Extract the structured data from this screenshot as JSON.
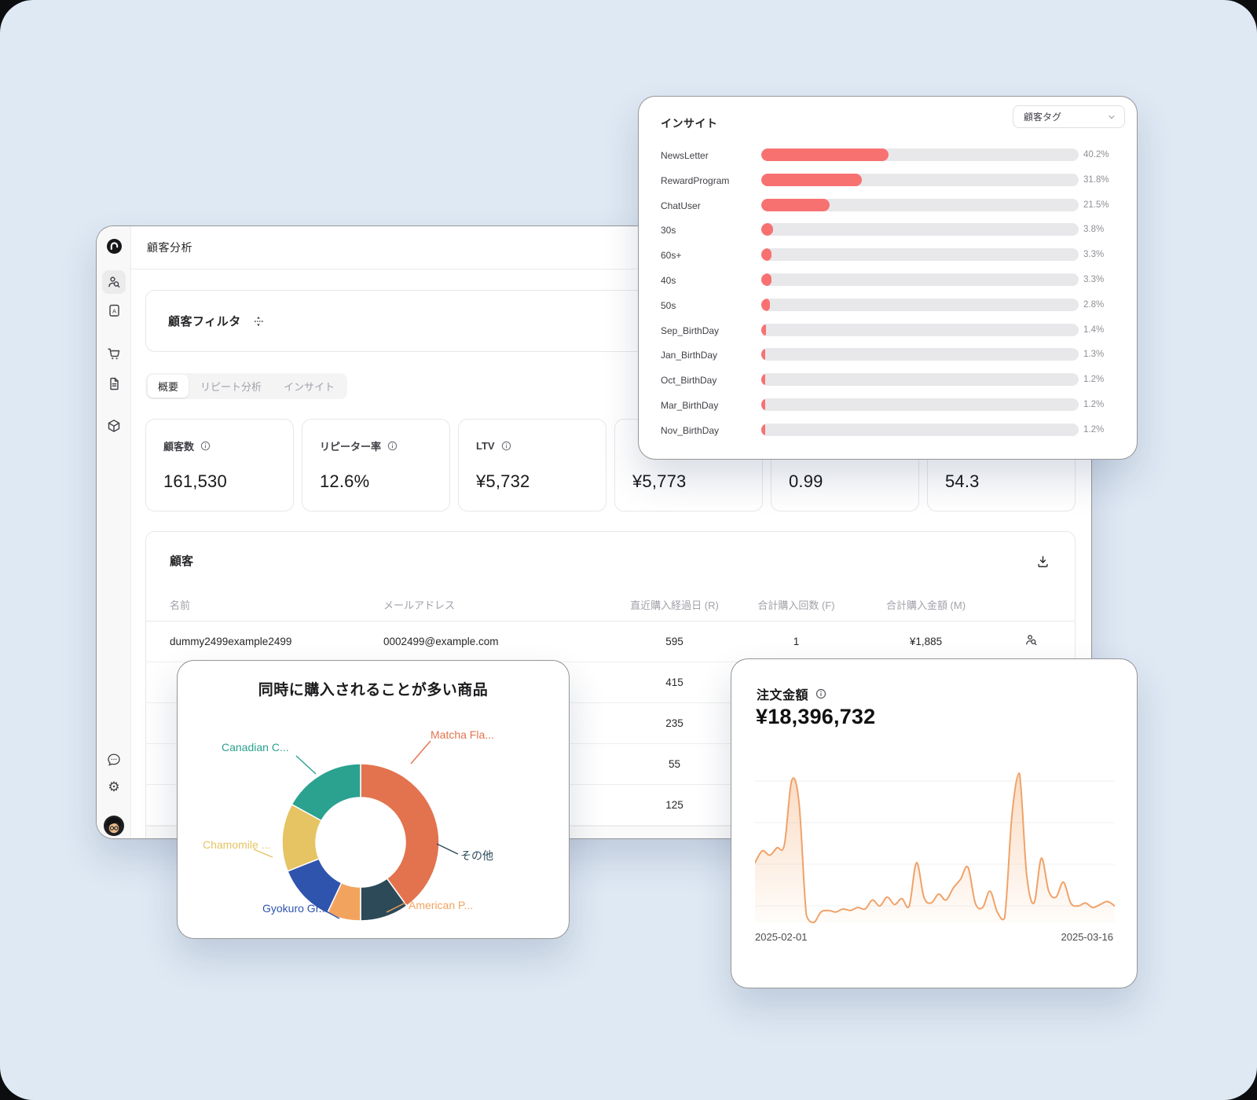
{
  "page": {
    "background_color": "#dfe9f4"
  },
  "main_window": {
    "header_title": "顧客分析",
    "sidebar_icons": [
      "logo",
      "customer-search",
      "contact-file",
      "cart",
      "document",
      "package",
      "chat",
      "settings",
      "avatar"
    ],
    "filter_card": {
      "label": "顧客フィルタ"
    },
    "tabs": [
      {
        "label": "概要",
        "active": true
      },
      {
        "label": "リピート分析",
        "active": false
      },
      {
        "label": "インサイト",
        "active": false
      }
    ],
    "kpis": [
      {
        "label": "顧客数",
        "value": "161,530",
        "info": true
      },
      {
        "label": "リピーター率",
        "value": "12.6%",
        "info": true
      },
      {
        "label": "LTV",
        "value": "¥5,732",
        "info": true
      },
      {
        "label": "",
        "value": "¥5,773",
        "info": false
      },
      {
        "label": "",
        "value": "0.99",
        "info": false
      },
      {
        "label": "",
        "value": "54.3",
        "info": false
      }
    ],
    "table": {
      "title": "顧客",
      "columns": [
        "名前",
        "メールアドレス",
        "直近購入経過日 (R)",
        "合計購入回数 (F)",
        "合計購入金額 (M)"
      ],
      "rows": [
        {
          "name": "dummy2499example2499",
          "email": "0002499@example.com",
          "recency": "595",
          "frequency": "1",
          "monetary": "¥1,885"
        },
        {
          "name": "",
          "email": "",
          "recency": "415",
          "frequency": "",
          "monetary": ""
        },
        {
          "name": "",
          "email": "",
          "recency": "235",
          "frequency": "",
          "monetary": ""
        },
        {
          "name": "",
          "email": "",
          "recency": "55",
          "frequency": "",
          "monetary": ""
        },
        {
          "name": "",
          "email": "",
          "recency": "125",
          "frequency": "",
          "monetary": ""
        }
      ]
    }
  },
  "insight_card": {
    "title": "インサイト",
    "dropdown_value": "顧客タグ"
  },
  "products_card": {
    "title": "同時に購入されることが多い商品"
  },
  "orders_card": {
    "title": "注文金額",
    "total": "¥18,396,732",
    "date_start": "2025-02-01",
    "date_end": "2025-03-16"
  },
  "chart_data": [
    {
      "type": "bar",
      "orientation": "horizontal",
      "title": "インサイト",
      "group_by": "顧客タグ",
      "categories": [
        "NewsLetter",
        "RewardProgram",
        "ChatUser",
        "30s",
        "60s+",
        "40s",
        "50s",
        "Sep_BirthDay",
        "Jan_BirthDay",
        "Oct_BirthDay",
        "Mar_BirthDay",
        "Nov_BirthDay"
      ],
      "values": [
        40.2,
        31.8,
        21.5,
        3.8,
        3.3,
        3.3,
        2.8,
        1.4,
        1.3,
        1.2,
        1.2,
        1.2
      ],
      "unit": "%",
      "xlim": [
        0,
        100
      ],
      "bar_color": "#f87171",
      "track_color": "#e8e8eb",
      "grid": false,
      "legend": "none"
    },
    {
      "type": "pie",
      "subtype": "donut",
      "title": "同時に購入されることが多い商品",
      "labels": [
        "Matcha Fla...",
        "その他",
        "American P...",
        "Gyokuro Gr...",
        "Chamomile ...",
        "Canadian C..."
      ],
      "values": [
        40,
        10,
        7,
        12,
        14,
        17
      ],
      "values_note": "percent share estimated from arc angles, clockwise from top",
      "colors": [
        "#e2734e",
        "#2c4a58",
        "#f2a45f",
        "#2f54ae",
        "#e6c363",
        "#2ba18f"
      ],
      "start_angle": "top",
      "clockwise": true,
      "legend": "outside-labels-with-connectors"
    },
    {
      "type": "area",
      "title": "注文金額",
      "total_label": "¥18,396,732",
      "x_start": "2025-02-01",
      "x_end": "2025-03-16",
      "ylim": [
        0,
        100
      ],
      "gridlines": 4,
      "line_color": "#f0a269",
      "fill_color": "rgba(244,177,122,0.28)",
      "values": [
        40,
        48,
        45,
        50,
        52,
        95,
        80,
        5,
        0,
        7,
        8,
        7,
        9,
        8,
        10,
        9,
        15,
        11,
        17,
        12,
        16,
        11,
        40,
        17,
        13,
        19,
        15,
        23,
        29,
        37,
        13,
        10,
        21,
        7,
        3,
        72,
        100,
        32,
        13,
        43,
        21,
        17,
        27,
        13,
        11,
        13,
        10,
        12,
        14,
        11
      ]
    }
  ]
}
